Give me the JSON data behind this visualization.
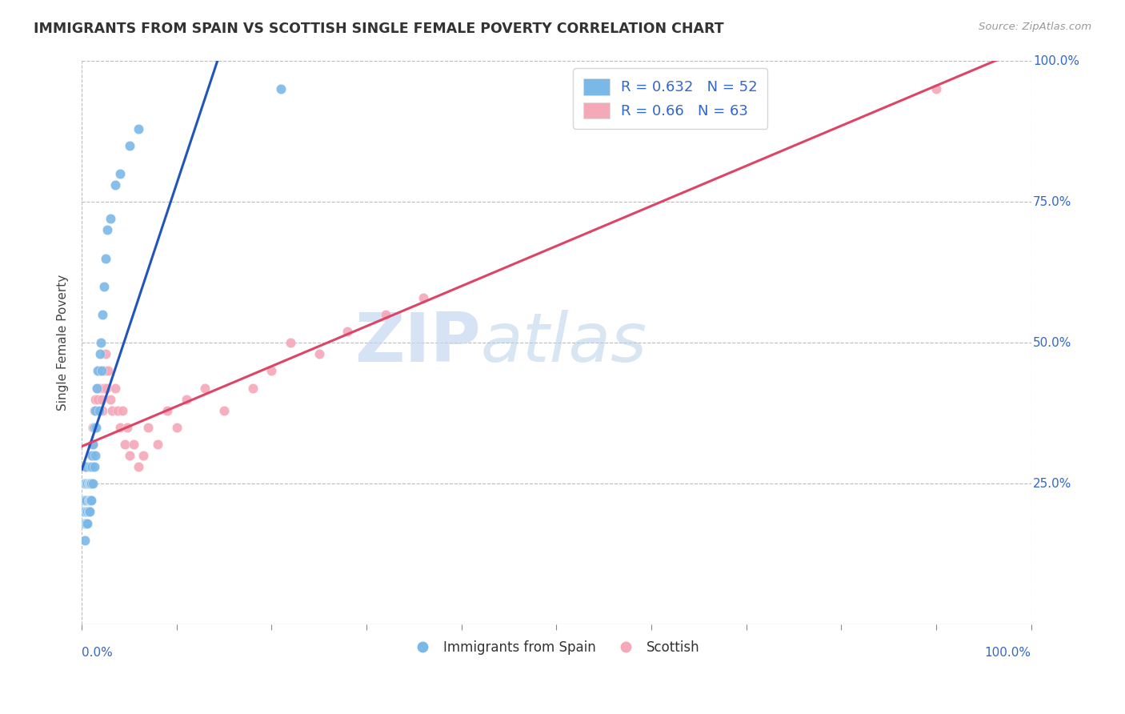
{
  "title": "IMMIGRANTS FROM SPAIN VS SCOTTISH SINGLE FEMALE POVERTY CORRELATION CHART",
  "source": "Source: ZipAtlas.com",
  "ylabel": "Single Female Poverty",
  "R_blue": 0.632,
  "N_blue": 52,
  "R_pink": 0.66,
  "N_pink": 63,
  "blue_color": "#7ab8e8",
  "pink_color": "#f4a8b8",
  "blue_line_color": "#2255bb",
  "pink_line_color": "#dd4466",
  "watermark_zip": "ZIP",
  "watermark_atlas": "atlas",
  "background_color": "#ffffff",
  "grid_color": "#bbbbbb",
  "legend_blue_label": "Immigrants from Spain",
  "legend_pink_label": "Scottish",
  "blue_scatter_x": [
    0.001,
    0.002,
    0.002,
    0.003,
    0.003,
    0.003,
    0.004,
    0.004,
    0.004,
    0.005,
    0.005,
    0.005,
    0.005,
    0.006,
    0.006,
    0.006,
    0.007,
    0.007,
    0.007,
    0.008,
    0.008,
    0.008,
    0.009,
    0.009,
    0.009,
    0.01,
    0.01,
    0.011,
    0.011,
    0.012,
    0.012,
    0.013,
    0.013,
    0.014,
    0.014,
    0.015,
    0.016,
    0.017,
    0.018,
    0.019,
    0.02,
    0.021,
    0.022,
    0.023,
    0.025,
    0.027,
    0.03,
    0.035,
    0.04,
    0.05,
    0.06,
    0.21
  ],
  "blue_scatter_y": [
    0.2,
    0.22,
    0.18,
    0.25,
    0.2,
    0.15,
    0.22,
    0.18,
    0.28,
    0.2,
    0.25,
    0.18,
    0.22,
    0.2,
    0.25,
    0.18,
    0.22,
    0.2,
    0.25,
    0.22,
    0.25,
    0.2,
    0.22,
    0.28,
    0.25,
    0.22,
    0.25,
    0.28,
    0.3,
    0.25,
    0.32,
    0.28,
    0.35,
    0.3,
    0.38,
    0.35,
    0.42,
    0.45,
    0.38,
    0.48,
    0.5,
    0.45,
    0.55,
    0.6,
    0.65,
    0.7,
    0.72,
    0.78,
    0.8,
    0.85,
    0.88,
    0.95
  ],
  "pink_scatter_x": [
    0.001,
    0.002,
    0.003,
    0.004,
    0.004,
    0.005,
    0.005,
    0.006,
    0.006,
    0.007,
    0.007,
    0.008,
    0.008,
    0.009,
    0.01,
    0.01,
    0.011,
    0.011,
    0.012,
    0.012,
    0.013,
    0.013,
    0.014,
    0.015,
    0.016,
    0.017,
    0.018,
    0.019,
    0.02,
    0.021,
    0.022,
    0.023,
    0.024,
    0.025,
    0.026,
    0.028,
    0.03,
    0.032,
    0.035,
    0.038,
    0.04,
    0.043,
    0.045,
    0.048,
    0.05,
    0.055,
    0.06,
    0.065,
    0.07,
    0.08,
    0.09,
    0.1,
    0.11,
    0.13,
    0.15,
    0.18,
    0.2,
    0.22,
    0.25,
    0.28,
    0.32,
    0.36,
    0.9
  ],
  "pink_scatter_y": [
    0.22,
    0.25,
    0.2,
    0.28,
    0.22,
    0.25,
    0.2,
    0.28,
    0.22,
    0.25,
    0.2,
    0.22,
    0.28,
    0.25,
    0.3,
    0.28,
    0.32,
    0.3,
    0.35,
    0.32,
    0.35,
    0.38,
    0.4,
    0.38,
    0.42,
    0.4,
    0.45,
    0.42,
    0.45,
    0.4,
    0.38,
    0.42,
    0.45,
    0.48,
    0.42,
    0.45,
    0.4,
    0.38,
    0.42,
    0.38,
    0.35,
    0.38,
    0.32,
    0.35,
    0.3,
    0.32,
    0.28,
    0.3,
    0.35,
    0.32,
    0.38,
    0.35,
    0.4,
    0.42,
    0.38,
    0.42,
    0.45,
    0.5,
    0.48,
    0.52,
    0.55,
    0.58,
    0.95
  ]
}
